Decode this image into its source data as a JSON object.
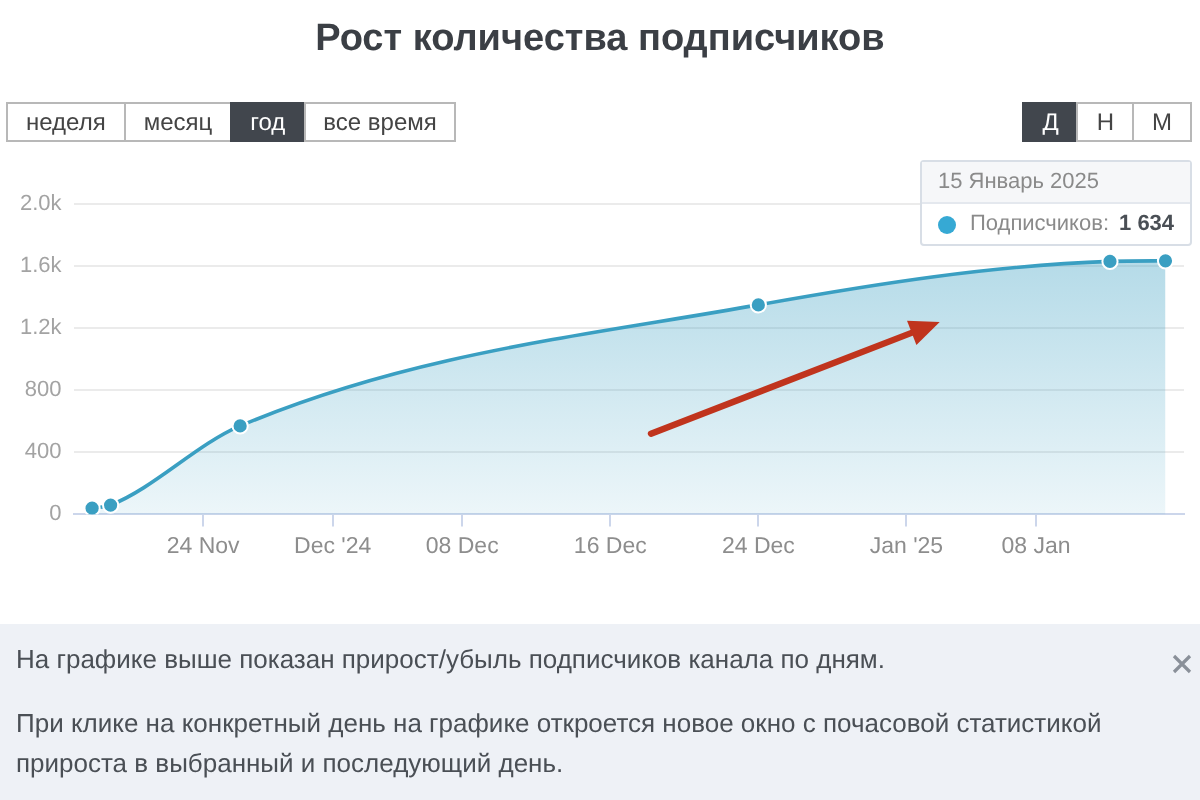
{
  "chart_data": {
    "type": "area",
    "title": "Рост количества подписчиков",
    "x": [
      "2024-11-18",
      "2024-11-19",
      "2024-11-26",
      "2024-12-24",
      "2025-01-12",
      "2025-01-15"
    ],
    "series": [
      {
        "color": "#3a9fc2",
        "values": [
          40,
          60,
          570,
          1350,
          1630,
          1634
        ],
        "value_labels": [
          null,
          null,
          null,
          null,
          null,
          "1 634"
        ]
      }
    ],
    "xlim": [
      "2024-11-17",
      "2025-01-16"
    ],
    "xticks": [
      {
        "value": "2024-11-24",
        "label": "24 Nov"
      },
      {
        "value": "2024-12-01",
        "label": "Dec '24"
      },
      {
        "value": "2024-12-08",
        "label": "08 Dec"
      },
      {
        "value": "2024-12-16",
        "label": "16 Dec"
      },
      {
        "value": "2024-12-24",
        "label": "24 Dec"
      },
      {
        "value": "2025-01-01",
        "label": "Jan '25"
      },
      {
        "value": "2025-01-08",
        "label": "08 Jan"
      }
    ],
    "ylim": [
      0,
      2000
    ],
    "yticks": [
      0,
      400,
      800,
      {
        "value": 1200,
        "label": "1.2k"
      },
      {
        "value": 1600,
        "label": "1.6k"
      },
      {
        "value": 2000,
        "label": "2.0k"
      }
    ],
    "grid": "y",
    "marker": "circle",
    "annotations": [
      "неделя",
      "месяц",
      "год",
      "все время",
      "Д",
      "Н",
      "М",
      "15 Январь 2025",
      "Подписчиков:",
      "На графике выше показан прирост/убыль подписчиков канала по дням.",
      "При клике на конкретный день на графике откроется новое окно с почасовой статистикой прироста в выбранный и последующий день."
    ]
  }
}
